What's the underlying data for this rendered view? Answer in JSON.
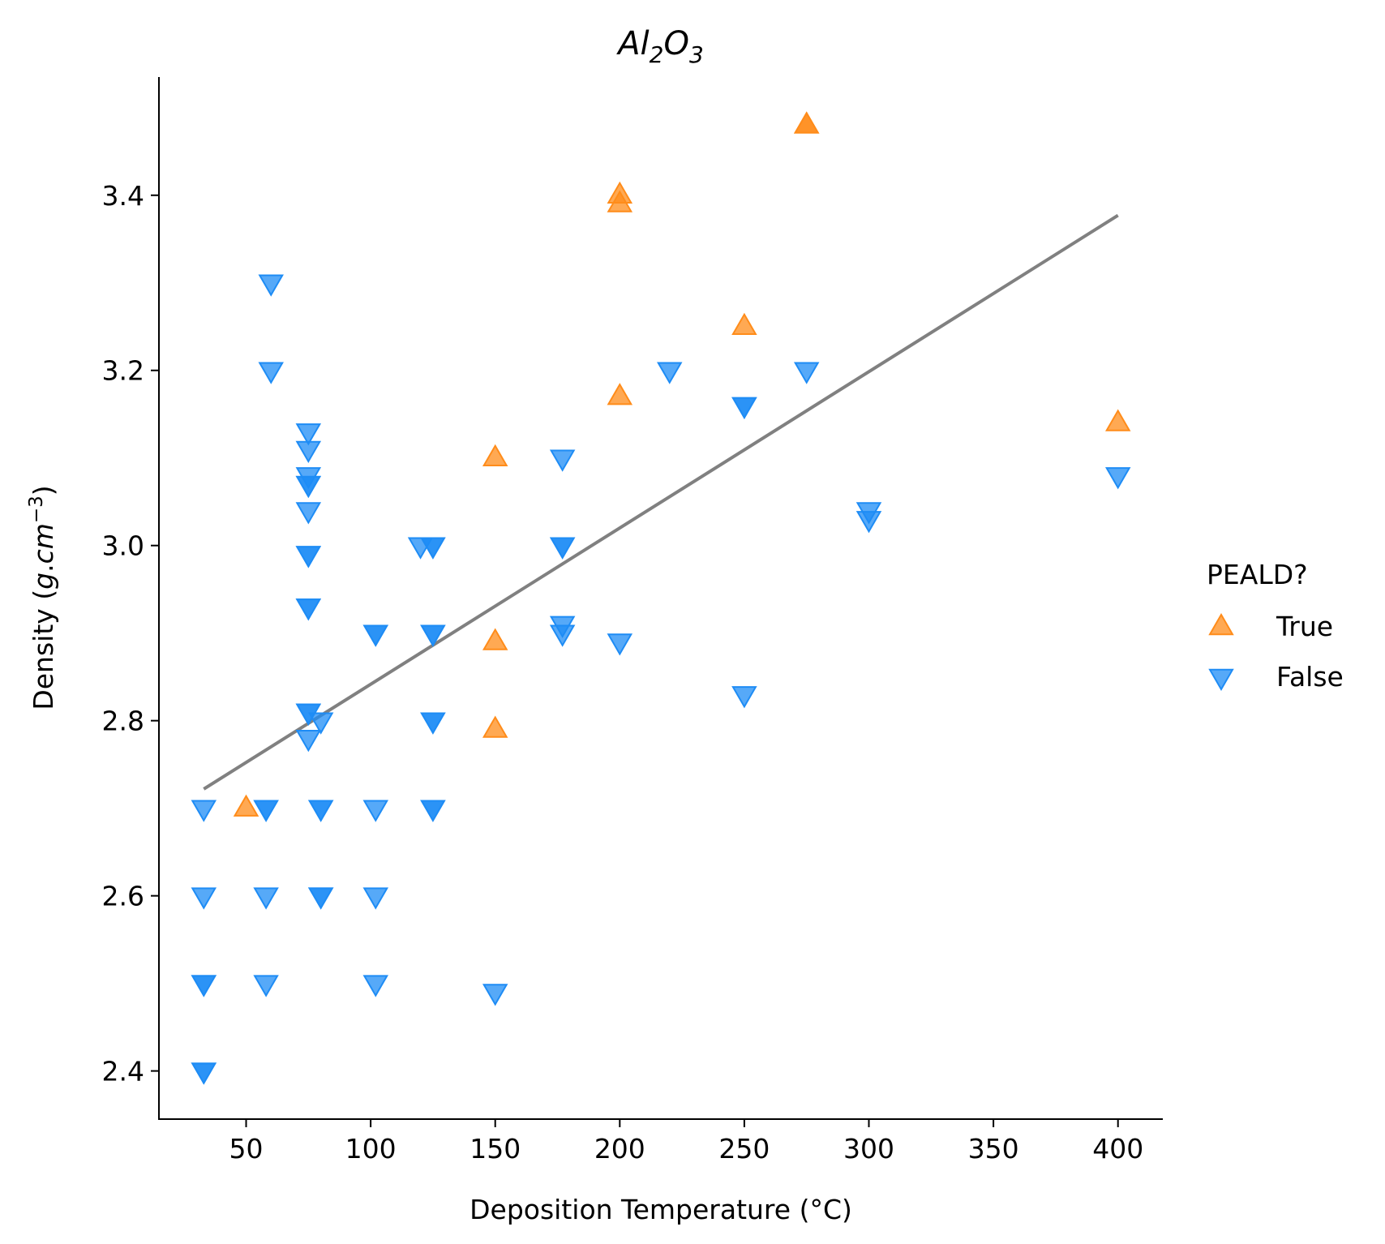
{
  "chart_data": {
    "type": "scatter",
    "title": {
      "base1": "Al",
      "sub1": "2",
      "base2": "O",
      "sub2": "3"
    },
    "xlabel": "Deposition Temperature (°C)",
    "ylabel": {
      "prefix": "Density (",
      "unit_g": "g",
      "dot": ".",
      "unit_cm": "cm",
      "sup": "−3",
      "suffix": ")"
    },
    "xlim": [
      15,
      418
    ],
    "ylim": [
      2.345,
      3.535
    ],
    "xticks": [
      50,
      100,
      150,
      200,
      250,
      300,
      350,
      400
    ],
    "xtick_labels": [
      "50",
      "100",
      "150",
      "200",
      "250",
      "300",
      "350",
      "400"
    ],
    "yticks": [
      2.4,
      2.6,
      2.8,
      3.0,
      3.2,
      3.4
    ],
    "ytick_labels": [
      "2.4",
      "2.6",
      "2.8",
      "3.0",
      "3.2",
      "3.4"
    ],
    "legend": {
      "title": "PEALD?",
      "placement": "right-outside"
    },
    "trendline": {
      "x": [
        33,
        400
      ],
      "y": [
        2.722,
        3.377
      ],
      "color": "#808080"
    },
    "series": [
      {
        "name": "True",
        "marker": "triangle-up",
        "color": "#ff8c1a",
        "points": [
          [
            50,
            2.7
          ],
          [
            150,
            2.79
          ],
          [
            150,
            2.89
          ],
          [
            150,
            3.1
          ],
          [
            200,
            3.17
          ],
          [
            200,
            3.39
          ],
          [
            200,
            3.4
          ],
          [
            250,
            3.25
          ],
          [
            275,
            3.48
          ],
          [
            275,
            3.48
          ],
          [
            400,
            3.14
          ]
        ]
      },
      {
        "name": "False",
        "marker": "triangle-down",
        "color": "#1e8cf5",
        "points": [
          [
            33,
            2.7
          ],
          [
            33,
            2.6
          ],
          [
            33,
            2.5
          ],
          [
            33,
            2.5
          ],
          [
            33,
            2.4
          ],
          [
            33,
            2.4
          ],
          [
            58,
            2.7
          ],
          [
            58,
            2.7
          ],
          [
            58,
            2.6
          ],
          [
            58,
            2.5
          ],
          [
            60,
            3.3
          ],
          [
            60,
            3.2
          ],
          [
            75,
            3.13
          ],
          [
            75,
            3.11
          ],
          [
            75,
            3.08
          ],
          [
            75,
            3.07
          ],
          [
            75,
            3.07
          ],
          [
            75,
            3.04
          ],
          [
            75,
            2.99
          ],
          [
            75,
            2.99
          ],
          [
            75,
            2.93
          ],
          [
            75,
            2.93
          ],
          [
            75,
            2.81
          ],
          [
            75,
            2.81
          ],
          [
            75,
            2.78
          ],
          [
            80,
            2.8
          ],
          [
            80,
            2.7
          ],
          [
            80,
            2.7
          ],
          [
            80,
            2.6
          ],
          [
            80,
            2.6
          ],
          [
            102,
            2.9
          ],
          [
            102,
            2.9
          ],
          [
            102,
            2.7
          ],
          [
            102,
            2.6
          ],
          [
            102,
            2.5
          ],
          [
            120,
            3.0
          ],
          [
            125,
            3.0
          ],
          [
            125,
            3.0
          ],
          [
            125,
            2.9
          ],
          [
            125,
            2.9
          ],
          [
            125,
            2.8
          ],
          [
            125,
            2.8
          ],
          [
            125,
            2.7
          ],
          [
            125,
            2.7
          ],
          [
            150,
            2.49
          ],
          [
            177,
            3.1
          ],
          [
            177,
            3.0
          ],
          [
            177,
            3.0
          ],
          [
            177,
            2.91
          ],
          [
            177,
            2.9
          ],
          [
            200,
            2.89
          ],
          [
            220,
            3.2
          ],
          [
            250,
            3.16
          ],
          [
            250,
            3.16
          ],
          [
            250,
            2.83
          ],
          [
            275,
            3.2
          ],
          [
            300,
            3.04
          ],
          [
            300,
            3.03
          ],
          [
            400,
            3.08
          ]
        ]
      }
    ]
  }
}
